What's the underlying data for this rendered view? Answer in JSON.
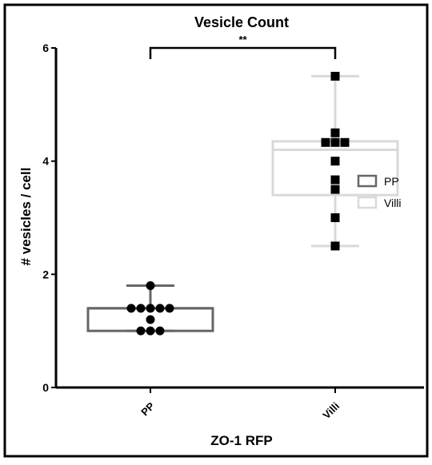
{
  "chart_data": {
    "type": "box",
    "title": "Vesicle Count",
    "xlabel": "ZO-1 RFP",
    "ylabel": "# vesicles / cell",
    "categories": [
      "PP",
      "Villi"
    ],
    "ylim": [
      0,
      6
    ],
    "yticks": [
      0,
      2,
      4,
      6
    ],
    "significance": {
      "from": "PP",
      "to": "Villi",
      "label": "**"
    },
    "legend": {
      "placement": "right",
      "entries": [
        "PP",
        "Villi"
      ]
    },
    "series": [
      {
        "name": "PP",
        "color": "#666666",
        "marker": "circle",
        "box": {
          "min": 1.0,
          "q1": 1.0,
          "median": 1.4,
          "q3": 1.4,
          "max": 1.8
        },
        "points": [
          1.8,
          1.4,
          1.4,
          1.4,
          1.4,
          1.4,
          1.2,
          1.0,
          1.0,
          1.0
        ]
      },
      {
        "name": "Villi",
        "color": "#d9d9d9",
        "marker": "square",
        "box": {
          "min": 2.5,
          "q1": 3.4,
          "median": 4.2,
          "q3": 4.35,
          "max": 5.5
        },
        "points": [
          5.5,
          4.5,
          4.33,
          4.33,
          4.33,
          4.0,
          3.67,
          3.5,
          3.0,
          2.5
        ]
      }
    ]
  }
}
